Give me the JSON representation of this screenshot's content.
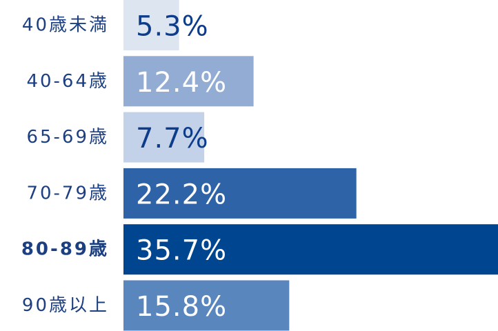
{
  "chart_data": {
    "type": "bar",
    "orientation": "horizontal",
    "categories": [
      "40歳未満",
      "40-64歳",
      "65-69歳",
      "70-79歳",
      "80-89歳",
      "90歳以上"
    ],
    "values": [
      5.3,
      12.4,
      7.7,
      22.2,
      35.7,
      15.8
    ],
    "value_labels": [
      "5.3%",
      "12.4%",
      "7.7%",
      "22.2%",
      "35.7%",
      "15.8%"
    ],
    "colors": [
      "#dde5f1",
      "#93acd3",
      "#c3d2e8",
      "#2e63a8",
      "#00458f",
      "#5a86be"
    ],
    "highlight_index": 4
  }
}
